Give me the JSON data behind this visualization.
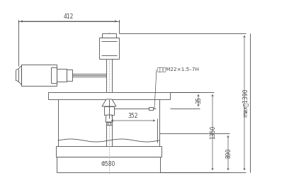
{
  "bg_color": "#ffffff",
  "line_color": "#4a4a4a",
  "annotations": {
    "dim_412": "412",
    "dim_352": "352",
    "dim_580": "Φ580",
    "dim_35": "35",
    "dim_1350": "1350",
    "dim_890": "890",
    "dim_max1390": "max＝1390",
    "label_outlet": "出油口M22×1.5–7H"
  },
  "font_size_dim": 5.5,
  "font_size_label": 5.2
}
